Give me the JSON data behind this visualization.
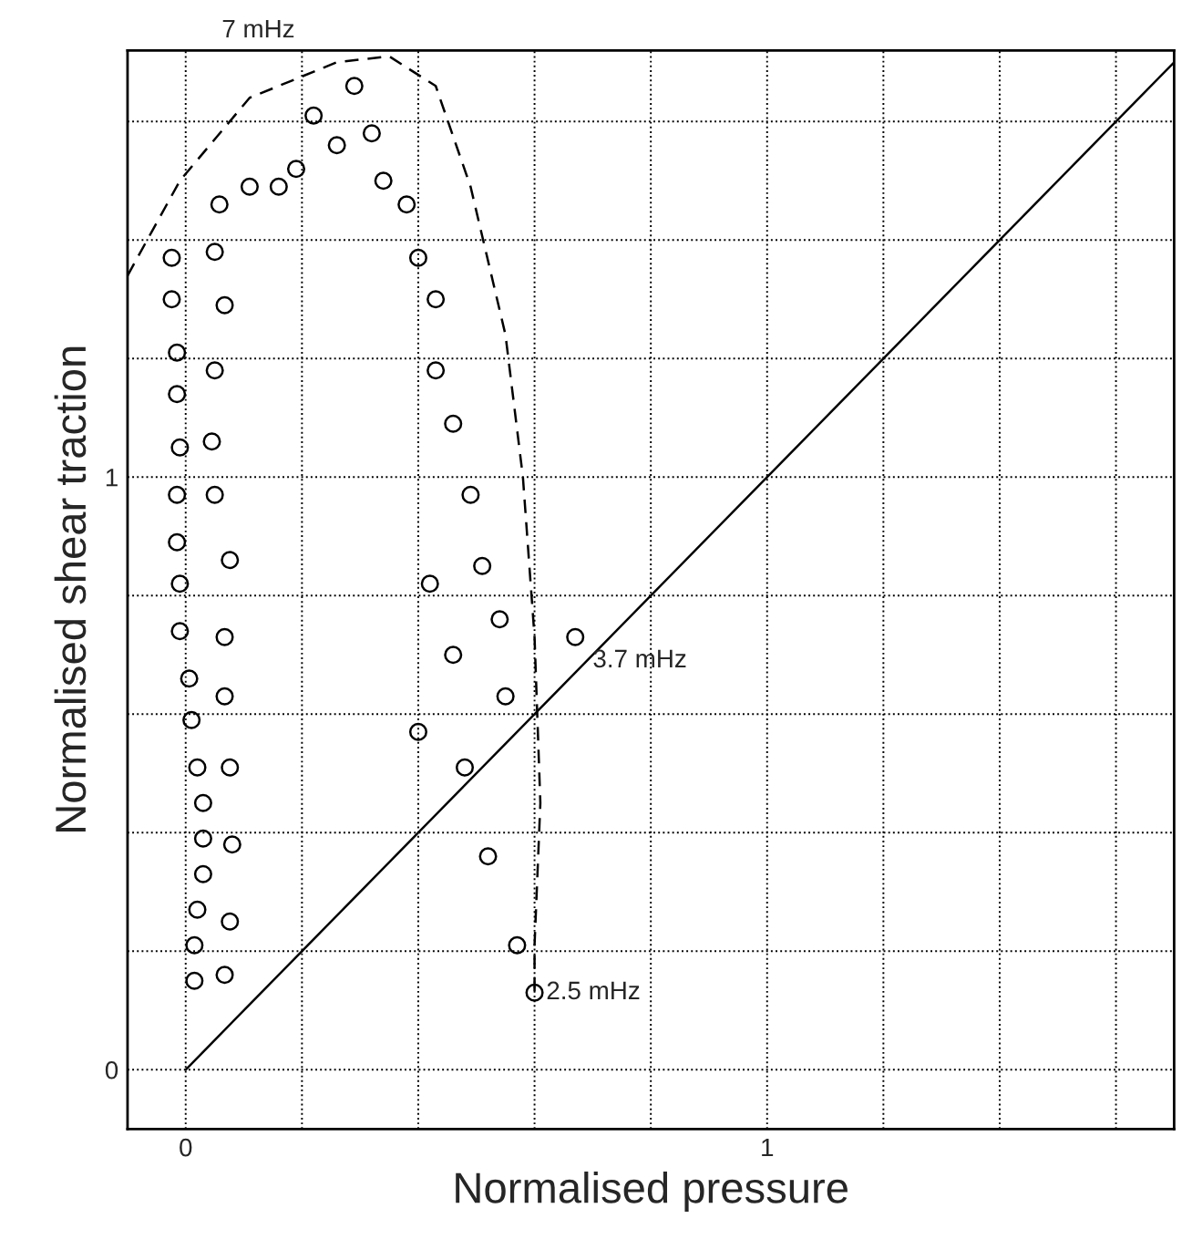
{
  "chart_data": {
    "type": "scatter",
    "xlabel": "Normalised pressure",
    "ylabel": "Normalised shear traction",
    "xlim": [
      -0.1,
      1.7
    ],
    "ylim": [
      -0.1,
      1.72
    ],
    "xticks": [
      0,
      {
        "value": 0.2,
        "label": null
      },
      {
        "value": 0.4,
        "label": null
      },
      {
        "value": 0.6,
        "label": null
      },
      {
        "value": 0.8,
        "label": null
      },
      1,
      {
        "value": 1.2,
        "label": null
      },
      {
        "value": 1.4,
        "label": null
      },
      {
        "value": 1.6,
        "label": null
      }
    ],
    "yticks": [
      0,
      {
        "value": 0.2,
        "label": null
      },
      {
        "value": 0.4,
        "label": null
      },
      {
        "value": 0.6,
        "label": null
      },
      {
        "value": 0.8,
        "label": null
      },
      1,
      {
        "value": 1.2,
        "label": null
      },
      {
        "value": 1.4,
        "label": null
      },
      {
        "value": 1.6,
        "label": null
      }
    ],
    "grid": true,
    "series": [
      {
        "marker": "circle",
        "color": "#000000",
        "x": [
          0.015,
          0.015,
          0.02,
          0.03,
          0.03,
          0.03,
          0.02,
          0.01,
          0.006,
          -0.01,
          -0.01,
          -0.015,
          -0.015,
          -0.01,
          -0.015,
          -0.015,
          -0.024,
          -0.024,
          0.067,
          0.076,
          0.08,
          0.076,
          0.067,
          0.067,
          0.076,
          0.05,
          0.045,
          0.05,
          0.067,
          0.05,
          0.058,
          0.11,
          0.16,
          0.19,
          0.22,
          0.26,
          0.29,
          0.32,
          0.34,
          0.38,
          0.4,
          0.43,
          0.43,
          0.46,
          0.49,
          0.51,
          0.54,
          0.55,
          0.42,
          0.46,
          0.4,
          0.48,
          0.52,
          0.57,
          0.67,
          0.6
        ],
        "values": [
          0.15,
          0.21,
          0.27,
          0.33,
          0.39,
          0.45,
          0.51,
          0.59,
          0.66,
          0.74,
          0.82,
          0.89,
          0.97,
          1.05,
          1.14,
          1.21,
          1.3,
          1.37,
          0.16,
          0.25,
          0.38,
          0.51,
          0.63,
          0.73,
          0.86,
          0.97,
          1.06,
          1.18,
          1.29,
          1.38,
          1.46,
          1.49,
          1.49,
          1.52,
          1.61,
          1.56,
          1.66,
          1.58,
          1.5,
          1.46,
          1.37,
          1.3,
          1.18,
          1.09,
          0.97,
          0.85,
          0.76,
          0.63,
          0.82,
          0.7,
          0.57,
          0.51,
          0.36,
          0.21,
          0.73,
          0.13
        ]
      },
      {
        "type": "line",
        "line_style": "dashed",
        "color": "#000000",
        "x": [
          -0.1,
          -0.01,
          0.11,
          0.26,
          0.35,
          0.43,
          0.49,
          0.55,
          0.58,
          0.6,
          0.61,
          0.6,
          0.6
        ],
        "values": [
          1.34,
          1.5,
          1.64,
          1.7,
          1.71,
          1.66,
          1.49,
          1.24,
          1.0,
          0.73,
          0.45,
          0.21,
          0.13
        ]
      },
      {
        "type": "line",
        "line_style": "solid",
        "color": "#000000",
        "x": [
          0,
          1.7
        ],
        "values": [
          0,
          1.7
        ]
      }
    ],
    "annotations": [
      "7 mHz",
      {
        "text": "3.7 mHz",
        "x": 0.7,
        "y": 0.69
      },
      {
        "text": "2.5 mHz",
        "x": 0.62,
        "y": 0.13
      }
    ]
  }
}
